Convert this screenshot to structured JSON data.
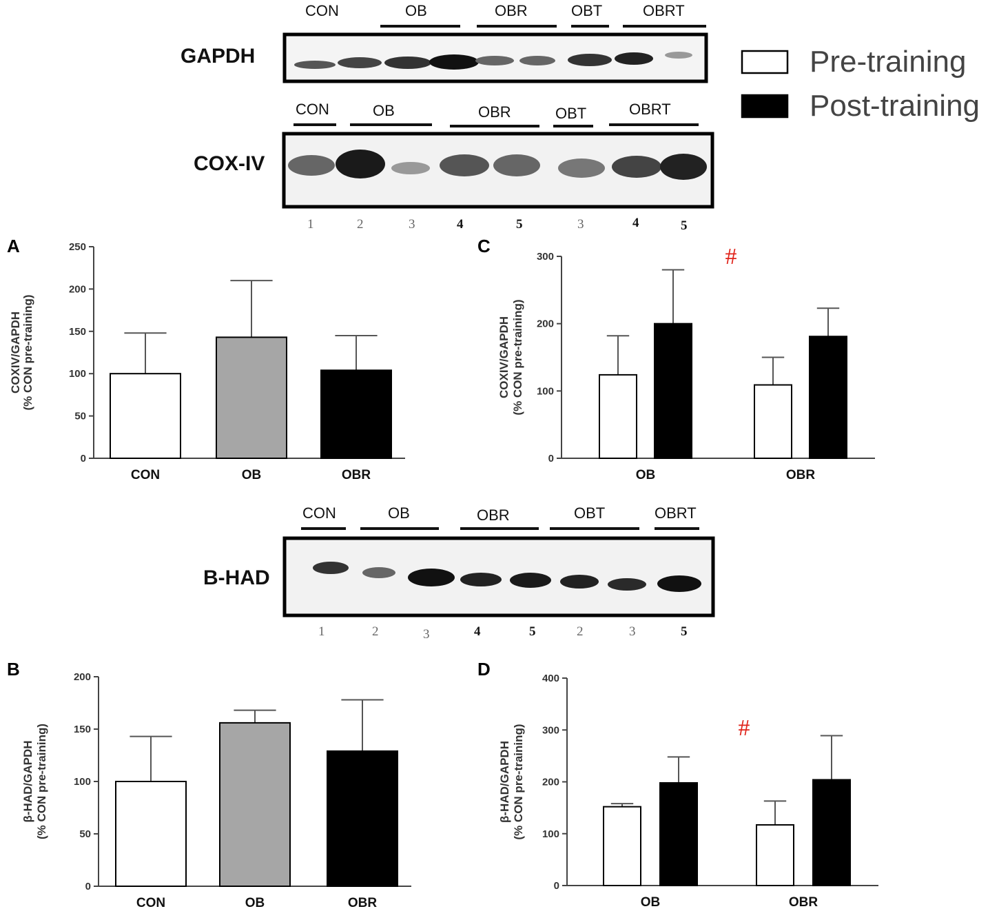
{
  "legend": {
    "items": [
      {
        "label": "Pre-training",
        "color": "#ffffff"
      },
      {
        "label": "Post-training",
        "color": "#000000"
      }
    ]
  },
  "blots": [
    {
      "name": "GAPDH",
      "groups": [
        "CON",
        "OB",
        "OBR",
        "OBT",
        "OBRT"
      ],
      "lane_numbers": []
    },
    {
      "name": "COX-IV",
      "groups": [
        "CON",
        "OB",
        "OBR",
        "OBT",
        "OBRT"
      ],
      "lane_numbers": [
        "1",
        "2",
        "3",
        "4",
        "5",
        "3",
        "4",
        "5"
      ]
    },
    {
      "name": "B-HAD",
      "groups": [
        "CON",
        "OB",
        "OBR",
        "OBT",
        "OBRT"
      ],
      "lane_numbers": [
        "1",
        "2",
        "3",
        "4",
        "5",
        "2",
        "3",
        "5"
      ]
    }
  ],
  "chart_data": [
    {
      "panel": "A",
      "type": "bar",
      "categories": [
        "CON",
        "OB",
        "OBR"
      ],
      "series": [
        {
          "values": [
            100,
            143,
            104
          ],
          "errors": [
            48,
            67,
            41
          ],
          "colors": [
            "#ffffff",
            "#a6a6a6",
            "#000000"
          ]
        }
      ],
      "ylabel": [
        "COXIV/GAPDH",
        "(% CON pre-training)"
      ],
      "ylim": [
        0,
        250
      ],
      "yticks": [
        "0",
        "50",
        "100",
        "150",
        "200",
        "250"
      ],
      "annotation": ""
    },
    {
      "panel": "B",
      "type": "bar",
      "categories": [
        "CON",
        "OB",
        "OBR"
      ],
      "series": [
        {
          "values": [
            100,
            156,
            129
          ],
          "errors": [
            43,
            12,
            49
          ],
          "colors": [
            "#ffffff",
            "#a6a6a6",
            "#000000"
          ]
        }
      ],
      "ylabel": [
        "β-HAD/GAPDH",
        "(% CON pre-training)"
      ],
      "ylim": [
        0,
        200
      ],
      "yticks": [
        "0",
        "50",
        "100",
        "150",
        "200"
      ],
      "annotation": ""
    },
    {
      "panel": "C",
      "type": "bar",
      "categories": [
        "OB",
        "OBR"
      ],
      "series": [
        {
          "name": "Pre-training",
          "values": [
            124,
            109
          ],
          "errors": [
            58,
            41
          ],
          "color": "#ffffff"
        },
        {
          "name": "Post-training",
          "values": [
            200,
            181
          ],
          "errors": [
            80,
            42
          ],
          "color": "#000000"
        }
      ],
      "ylabel": [
        "COXIV/GAPDH",
        "(% CON pre-training)"
      ],
      "ylim": [
        0,
        300
      ],
      "yticks": [
        "0",
        "100",
        "200",
        "300"
      ],
      "annotation": "#"
    },
    {
      "panel": "D",
      "type": "bar",
      "categories": [
        "OB",
        "OBR"
      ],
      "series": [
        {
          "name": "Pre-training",
          "values": [
            152,
            117
          ],
          "errors": [
            6,
            46
          ],
          "color": "#ffffff"
        },
        {
          "name": "Post-training",
          "values": [
            198,
            204
          ],
          "errors": [
            50,
            85
          ],
          "color": "#000000"
        }
      ],
      "ylabel": [
        "β-HAD/GAPDH",
        "(% CON pre-training)"
      ],
      "ylim": [
        0,
        400
      ],
      "yticks": [
        "0",
        "100",
        "200",
        "300",
        "400"
      ],
      "annotation": "#"
    }
  ]
}
